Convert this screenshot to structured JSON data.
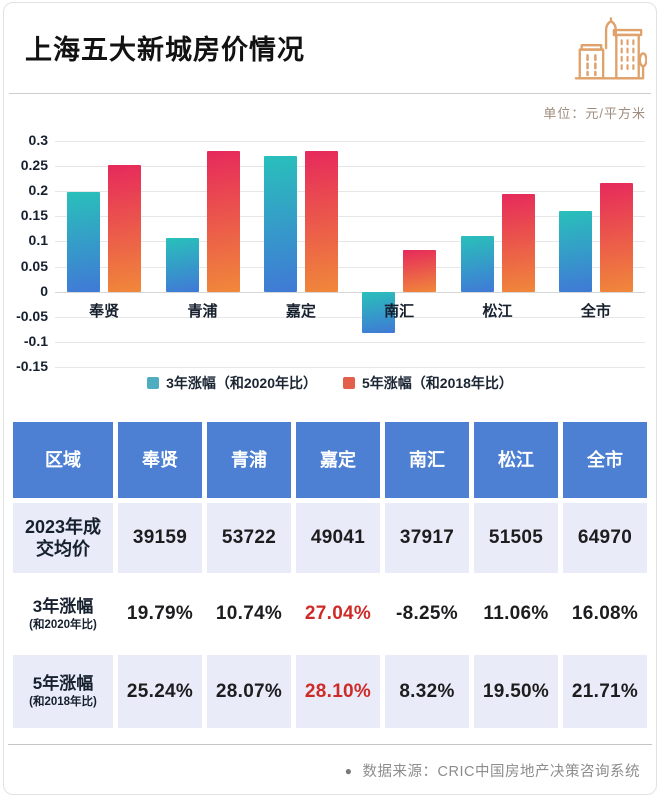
{
  "header": {
    "title": "上海五大新城房价情况",
    "unit_label": "单位：元/平方米"
  },
  "colors": {
    "table_header_blue": "#4d80d3",
    "table_row_lavender": "#e9ebf8",
    "highlight_red": "#cd2b28",
    "icon_orange": "#dfa26b",
    "teal_bar_top": "#29c0ba",
    "teal_bar_bottom": "#4079d6",
    "red_bar_top": "#e6295c",
    "red_bar_bottom": "#f0883a"
  },
  "chart_data": {
    "type": "bar",
    "title": "上海五大新城房价情况",
    "categories": [
      "奉贤",
      "青浦",
      "嘉定",
      "南汇",
      "松江",
      "全市"
    ],
    "series": [
      {
        "name": "3年涨幅（和2020年比）",
        "values": [
          0.1979,
          0.1074,
          0.2704,
          -0.0825,
          0.1106,
          0.1608
        ],
        "legend_color": "#4fadc2",
        "gradient": [
          "#29c0ba",
          "#4079d6"
        ]
      },
      {
        "name": "5年涨幅（和2018年比）",
        "values": [
          0.2524,
          0.2807,
          0.281,
          0.0832,
          0.195,
          0.2171
        ],
        "legend_color": "#e45f4b",
        "gradient": [
          "#e6295c",
          "#f0883a"
        ]
      }
    ],
    "ylim": [
      -0.15,
      0.3
    ],
    "ytick_step": 0.05,
    "grid": true,
    "legend_position": "bottom",
    "xlabel": "",
    "ylabel": ""
  },
  "table": {
    "header_row": [
      "区域",
      "奉贤",
      "青浦",
      "嘉定",
      "南汇",
      "松江",
      "全市"
    ],
    "rows": [
      {
        "label": "2023年成交均价",
        "sublabel": "",
        "values": [
          "39159",
          "53722",
          "49041",
          "37917",
          "51505",
          "64970"
        ],
        "highlight": [],
        "shaded": true
      },
      {
        "label": "3年涨幅",
        "sublabel": "(和2020年比)",
        "values": [
          "19.79%",
          "10.74%",
          "27.04%",
          "-8.25%",
          "11.06%",
          "16.08%"
        ],
        "highlight": [
          2
        ],
        "shaded": false
      },
      {
        "label": "5年涨幅",
        "sublabel": "(和2018年比)",
        "values": [
          "25.24%",
          "28.07%",
          "28.10%",
          "8.32%",
          "19.50%",
          "21.71%"
        ],
        "highlight": [
          2
        ],
        "shaded": true
      }
    ]
  },
  "footer": {
    "bullet": "●",
    "source_text": "数据来源：CRIC中国房地产决策咨询系统"
  }
}
